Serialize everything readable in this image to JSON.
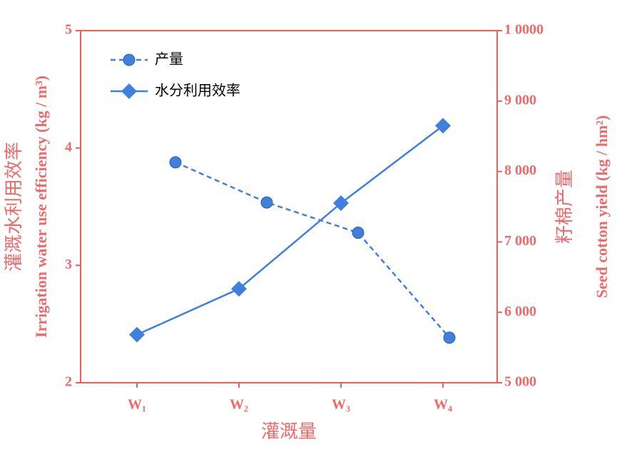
{
  "chart_data": {
    "type": "line",
    "x_label": "灌溉量",
    "y_label": "灌溉水利用效率",
    "y_label_en": "Irrigation water use efficiency (kg / m³)",
    "y2_label": "籽棉产量",
    "y2_label_en": "Seed cotton yield (kg / hm²)",
    "categories": [
      "W₁",
      "W₂",
      "W₃",
      "W₄"
    ],
    "series": [
      {
        "name": "产量",
        "color": "#3f80dc",
        "axis": "y2",
        "dashed": true,
        "marker": "circle",
        "values": [
          8130,
          7560,
          7130,
          5640
        ]
      },
      {
        "name": "水分利用效率",
        "color": "#3f80dc",
        "axis": "y",
        "dashed": false,
        "marker": "diamond",
        "values": [
          2.41,
          2.8,
          3.53,
          4.19
        ]
      }
    ],
    "ylim": [
      2,
      5
    ],
    "yticks": [
      2,
      3,
      4,
      5
    ],
    "y2lim": [
      5000,
      10000
    ],
    "y2ticks": [
      {
        "value": 5000,
        "label": "5 000"
      },
      {
        "value": 6000,
        "label": "6 000"
      },
      {
        "value": 7000,
        "label": "7 000"
      },
      {
        "value": 8000,
        "label": "8 000"
      },
      {
        "value": 9000,
        "label": "9 000"
      },
      {
        "value": 10000,
        "label": "1 0000"
      }
    ],
    "axis_color": "#ec5f60",
    "legend": "upper left"
  }
}
